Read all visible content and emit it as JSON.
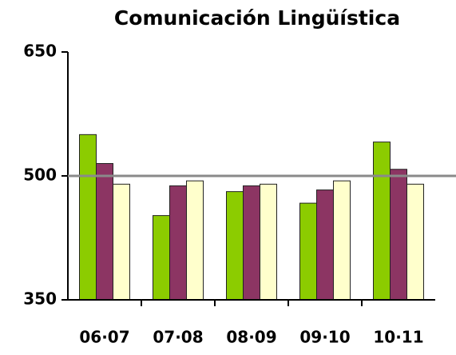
{
  "chart_data": {
    "type": "bar",
    "title": "Comunicación Lingüística",
    "categories": [
      "06·07",
      "07·08",
      "08·09",
      "09·10",
      "10·11"
    ],
    "series": [
      {
        "color": "#8ccc00",
        "values": [
          550,
          452,
          481,
          467,
          541
        ]
      },
      {
        "color": "#8c3563",
        "values": [
          515,
          488,
          488,
          483,
          508
        ]
      },
      {
        "color": "#ffffcc",
        "values": [
          490,
          494,
          490,
          494,
          490
        ]
      }
    ],
    "ylim": [
      350,
      650
    ],
    "yticks": [
      350,
      500,
      650
    ],
    "reference_line": 500
  }
}
